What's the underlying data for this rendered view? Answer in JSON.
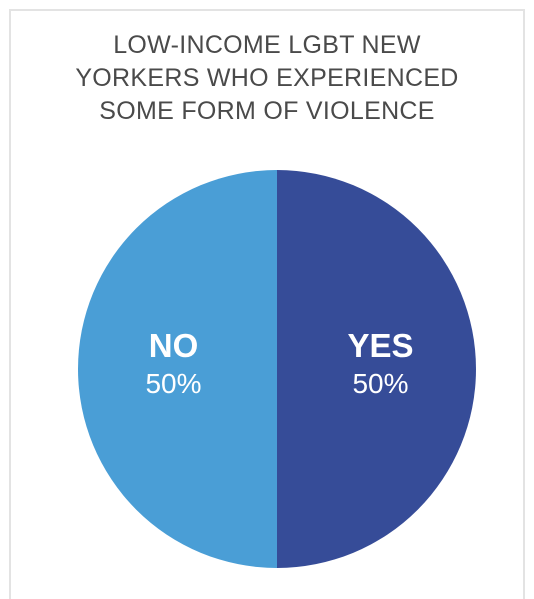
{
  "chart_data": {
    "type": "pie",
    "title_lines": [
      "LOW-INCOME LGBT NEW",
      "YORKERS WHO EXPERIENCED",
      "SOME FORM OF VIOLENCE"
    ],
    "slices": [
      {
        "label": "YES",
        "value": 50,
        "display": "50%",
        "color": "#364c98"
      },
      {
        "label": "NO",
        "value": 50,
        "display": "50%",
        "color": "#4a9ed6"
      }
    ],
    "start_angle_deg": 0,
    "direction": "clockwise",
    "legend": "none"
  }
}
